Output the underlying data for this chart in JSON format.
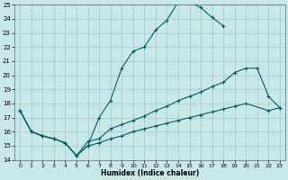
{
  "xlabel": "Humidex (Indice chaleur)",
  "xlim": [
    -0.5,
    23.5
  ],
  "ylim": [
    14,
    25
  ],
  "xticks": [
    0,
    1,
    2,
    3,
    4,
    5,
    6,
    7,
    8,
    9,
    10,
    11,
    12,
    13,
    14,
    15,
    16,
    17,
    18,
    19,
    20,
    21,
    22,
    23
  ],
  "yticks": [
    14,
    15,
    16,
    17,
    18,
    19,
    20,
    21,
    22,
    23,
    24,
    25
  ],
  "bg_color": "#c8e8e8",
  "grid_color": "#a8c8c8",
  "line_color": "#006060",
  "curve1_x": [
    0,
    1,
    2,
    3,
    4,
    5,
    6,
    7,
    8,
    9,
    10,
    11,
    12,
    13,
    14,
    15,
    16,
    17,
    18
  ],
  "curve1_y": [
    17.5,
    16.0,
    15.7,
    15.5,
    15.2,
    14.3,
    15.0,
    17.0,
    18.2,
    20.5,
    21.7,
    22.0,
    23.2,
    23.9,
    25.2,
    25.2,
    24.8,
    24.1,
    23.5
  ],
  "curve2_x": [
    0,
    1,
    2,
    3,
    4,
    5,
    6,
    7,
    8,
    9,
    10,
    11,
    12,
    13,
    14,
    15,
    16,
    17,
    18,
    19,
    20,
    21,
    22,
    23
  ],
  "curve2_y": [
    17.5,
    16.0,
    15.7,
    15.5,
    15.2,
    14.3,
    15.3,
    15.5,
    16.2,
    16.5,
    16.8,
    17.1,
    17.5,
    17.8,
    18.2,
    18.5,
    18.8,
    19.2,
    19.5,
    20.2,
    20.5,
    20.5,
    18.5,
    17.7
  ],
  "curve3_x": [
    0,
    1,
    2,
    3,
    4,
    5,
    6,
    7,
    8,
    9,
    10,
    11,
    12,
    13,
    14,
    15,
    16,
    17,
    18,
    19,
    20,
    22,
    23
  ],
  "curve3_y": [
    17.5,
    16.0,
    15.7,
    15.5,
    15.2,
    14.3,
    15.0,
    15.2,
    15.5,
    15.7,
    16.0,
    16.2,
    16.4,
    16.6,
    16.8,
    17.0,
    17.2,
    17.4,
    17.6,
    17.8,
    18.0,
    17.5,
    17.7
  ]
}
